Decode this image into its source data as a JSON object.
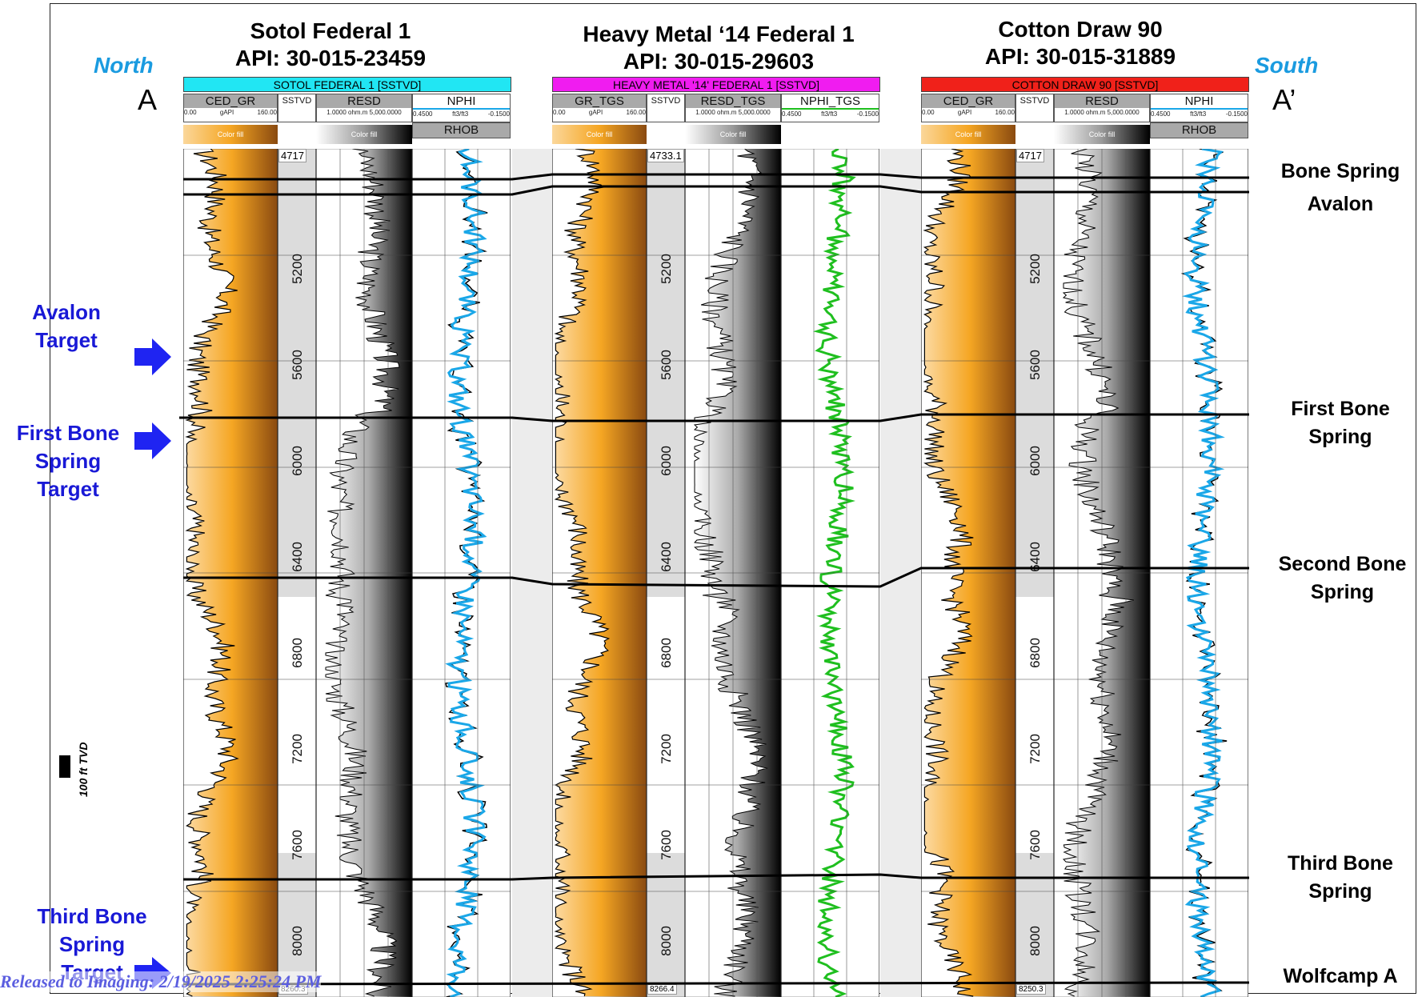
{
  "wells": [
    {
      "name": "Sotol Federal 1",
      "api": "API: 30-015-23459",
      "header_label": "SOTOL FEDERAL 1 [SSTVD]",
      "header_color": "#21e6f3",
      "tracks": {
        "gr": "CED_GR",
        "depth": "SSTVD",
        "res": "RESD",
        "nphi": "NPHI",
        "rhob": "RHOB"
      },
      "gr_scale": [
        "0.00",
        "gAPI",
        "160.00"
      ],
      "res_scale": "1.0000 ohm.m 5,000.0000",
      "nphi_scale": [
        "0.4500",
        "ft3/ft3",
        "-0.1500"
      ],
      "fill_label": "Color fill",
      "top_depth": "4717",
      "bottom_depth": "8260.3",
      "depth_ticks": [
        "5200",
        "5600",
        "6000",
        "6400",
        "6800",
        "7200",
        "7600",
        "8000"
      ]
    },
    {
      "name": "Heavy Metal ‘14 Federal 1",
      "api": "API: 30-015-29603",
      "header_label": "HEAVY METAL '14' FEDERAL 1 [SSTVD]",
      "header_color": "#f01cf0",
      "tracks": {
        "gr": "GR_TGS",
        "depth": "SSTVD",
        "res": "RESD_TGS",
        "nphi": "NPHI_TGS",
        "rhob": ""
      },
      "gr_scale": [
        "0.00",
        "gAPI",
        "160.00"
      ],
      "res_scale": "1.0000 ohm.m 5,000.0000",
      "nphi_scale": [
        "0.4500",
        "ft3/ft3",
        "-0.1500"
      ],
      "fill_label": "Color fill",
      "top_depth": "4733.1",
      "bottom_depth": "8266.4",
      "depth_ticks": [
        "5200",
        "5600",
        "6000",
        "6400",
        "6800",
        "7200",
        "7600",
        "8000"
      ]
    },
    {
      "name": "Cotton Draw 90",
      "api": "API: 30-015-31889",
      "header_label": "COTTON DRAW 90 [SSTVD]",
      "header_color": "#f0211a",
      "tracks": {
        "gr": "CED_GR",
        "depth": "SSTVD",
        "res": "RESD",
        "nphi": "NPHI",
        "rhob": "RHOB"
      },
      "gr_scale": [
        "0.00",
        "gAPI",
        "160.00"
      ],
      "res_scale": "1.0000 ohm.m 5,000.0000",
      "nphi_scale": [
        "0.4500",
        "ft3/ft3",
        "-0.1500"
      ],
      "fill_label": "Color fill",
      "top_depth": "4717",
      "bottom_depth": "8250.3",
      "depth_ticks": [
        "5200",
        "5600",
        "6000",
        "6400",
        "6800",
        "7200",
        "7600",
        "8000"
      ]
    }
  ],
  "direction": {
    "left_word": "North",
    "left_letter": "A",
    "right_word": "South",
    "right_letter": "A’"
  },
  "targets": [
    {
      "lines": [
        "Avalon",
        "Target"
      ]
    },
    {
      "lines": [
        "First Bone",
        "Spring",
        "Target"
      ]
    },
    {
      "lines": [
        "Third Bone",
        "Spring",
        "Target"
      ]
    }
  ],
  "formations": [
    {
      "lines": [
        "Bone Spring"
      ]
    },
    {
      "lines": [
        "Avalon"
      ]
    },
    {
      "lines": [
        "First Bone",
        "Spring"
      ]
    },
    {
      "lines": [
        "Second Bone",
        "Spring"
      ]
    },
    {
      "lines": [
        "Third Bone",
        "Spring"
      ]
    },
    {
      "lines": [
        "Wolfcamp A"
      ]
    }
  ],
  "scale_bar_label": "100 ft TVD",
  "released_stamp": "Released to Imaging: 2/19/2025 2:25:24 PM",
  "colors": {
    "gr_fill_light": "#f5a623",
    "gr_fill_dark": "#8a4a10",
    "nphi_blue": "#1aa7e8",
    "nphi_green": "#1fbf1f",
    "target_blue": "#1919d6",
    "direction_blue": "#1a9be0"
  }
}
